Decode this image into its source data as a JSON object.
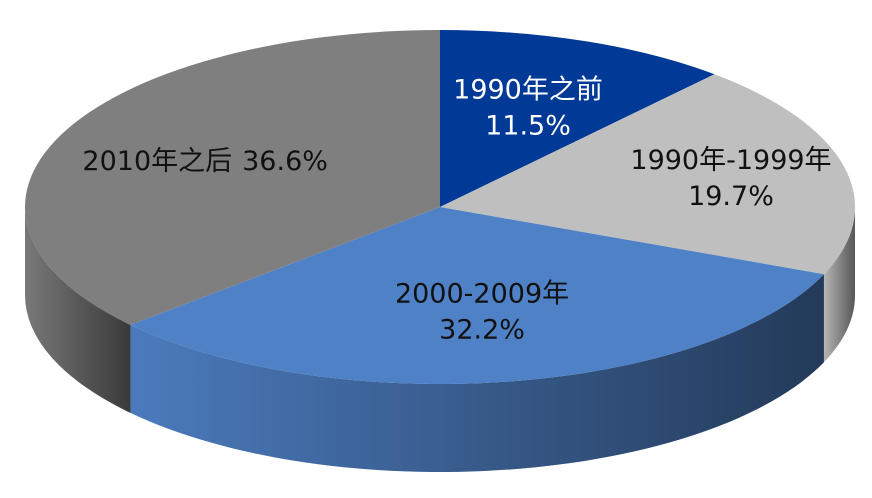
{
  "chart_data": {
    "type": "pie",
    "categories": [
      "1990年之前",
      "1990年-1999年",
      "2000-2009年",
      "2010年之后"
    ],
    "values": [
      11.5,
      19.7,
      32.2,
      36.6
    ],
    "value_labels": [
      "11.5%",
      "19.7%",
      "32.2%",
      "36.6%"
    ],
    "colors": [
      "#003a96",
      "#bfbfbf",
      "#4f81c6",
      "#7f7f7f"
    ]
  }
}
